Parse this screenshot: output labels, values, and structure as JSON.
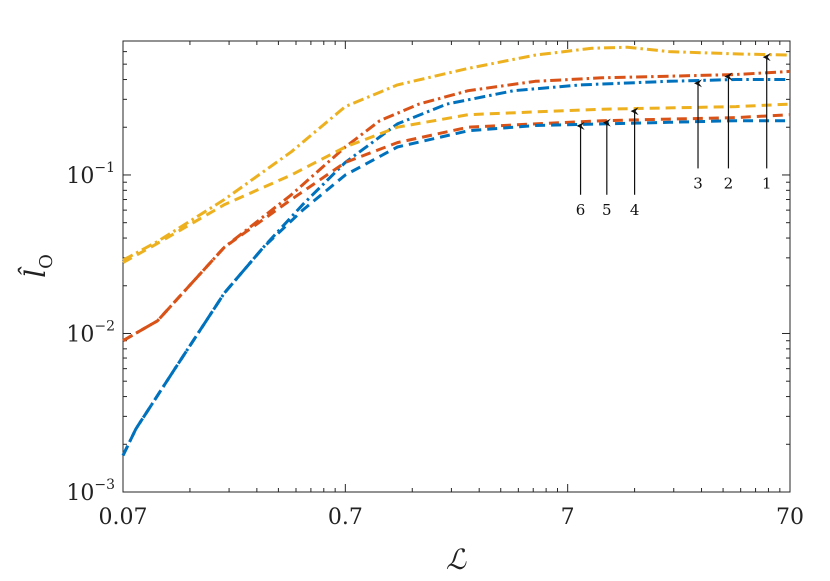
{
  "chart_data": {
    "type": "line",
    "title": "",
    "xlabel": "ℒ",
    "ylabel": "l̂",
    "ylabel_sub": "O",
    "x_scale": "log",
    "y_scale": "log",
    "xlim": [
      0.07,
      70
    ],
    "ylim": [
      0.001,
      0.7
    ],
    "grid": false,
    "legend": "none",
    "x_ticks": [
      {
        "value": 0.07,
        "label": "0.07"
      },
      {
        "value": 0.7,
        "label": "0.7"
      },
      {
        "value": 7,
        "label": "7"
      },
      {
        "value": 70,
        "label": "70"
      }
    ],
    "y_ticks": [
      {
        "value": 0.001,
        "base": "10",
        "exp": "−3"
      },
      {
        "value": 0.01,
        "base": "10",
        "exp": "−2"
      },
      {
        "value": 0.1,
        "base": "10",
        "exp": "−1"
      }
    ],
    "series": [
      {
        "id": 1,
        "color": "#EDB120",
        "dash": "dashdot",
        "x": [
          0.07,
          0.1,
          0.2,
          0.4,
          0.7,
          1.2,
          2.5,
          5,
          9,
          13,
          20,
          40,
          70
        ],
        "y": [
          0.029,
          0.038,
          0.07,
          0.14,
          0.27,
          0.37,
          0.47,
          0.57,
          0.63,
          0.64,
          0.6,
          0.58,
          0.57
        ]
      },
      {
        "id": 2,
        "color": "#D95319",
        "dash": "dashdot",
        "x": [
          0.07,
          0.1,
          0.2,
          0.4,
          0.7,
          1.0,
          1.5,
          2.5,
          5,
          10,
          20,
          40,
          70
        ],
        "y": [
          0.009,
          0.012,
          0.035,
          0.075,
          0.15,
          0.22,
          0.28,
          0.34,
          0.39,
          0.41,
          0.42,
          0.43,
          0.45
        ]
      },
      {
        "id": 3,
        "color": "#0072BD",
        "dash": "dashdot",
        "x": [
          0.07,
          0.08,
          0.12,
          0.2,
          0.3,
          0.45,
          0.7,
          1.2,
          2,
          4,
          8,
          20,
          40,
          70
        ],
        "y": [
          0.0017,
          0.0025,
          0.006,
          0.018,
          0.035,
          0.065,
          0.12,
          0.21,
          0.28,
          0.34,
          0.37,
          0.39,
          0.4,
          0.4
        ]
      },
      {
        "id": 4,
        "color": "#EDB120",
        "dash": "dashed",
        "x": [
          0.07,
          0.1,
          0.2,
          0.4,
          0.7,
          1.2,
          2.5,
          5,
          10,
          20,
          40,
          70
        ],
        "y": [
          0.028,
          0.037,
          0.065,
          0.1,
          0.15,
          0.2,
          0.24,
          0.25,
          0.26,
          0.265,
          0.27,
          0.28
        ]
      },
      {
        "id": 5,
        "color": "#D95319",
        "dash": "dashed",
        "x": [
          0.07,
          0.1,
          0.2,
          0.4,
          0.7,
          1.2,
          2.5,
          5,
          10,
          20,
          40,
          70
        ],
        "y": [
          0.009,
          0.012,
          0.035,
          0.07,
          0.12,
          0.16,
          0.2,
          0.21,
          0.22,
          0.225,
          0.23,
          0.24
        ]
      },
      {
        "id": 6,
        "color": "#0072BD",
        "dash": "dashed",
        "x": [
          0.07,
          0.08,
          0.12,
          0.2,
          0.3,
          0.45,
          0.7,
          1.2,
          2.5,
          5,
          10,
          20,
          40,
          70
        ],
        "y": [
          0.0017,
          0.0025,
          0.006,
          0.018,
          0.035,
          0.06,
          0.1,
          0.15,
          0.19,
          0.205,
          0.21,
          0.215,
          0.22,
          0.22
        ]
      }
    ],
    "annotations": [
      {
        "label": "1",
        "x": 55,
        "y_tip": 0.57,
        "y_tail": 0.11
      },
      {
        "label": "2",
        "x": 37,
        "y_tip": 0.43,
        "y_tail": 0.11
      },
      {
        "label": "3",
        "x": 27,
        "y_tip": 0.39,
        "y_tail": 0.11
      },
      {
        "label": "4",
        "x": 14,
        "y_tip": 0.26,
        "y_tail": 0.075
      },
      {
        "label": "5",
        "x": 10.5,
        "y_tip": 0.22,
        "y_tail": 0.075
      },
      {
        "label": "6",
        "x": 8,
        "y_tip": 0.21,
        "y_tail": 0.075
      }
    ]
  }
}
